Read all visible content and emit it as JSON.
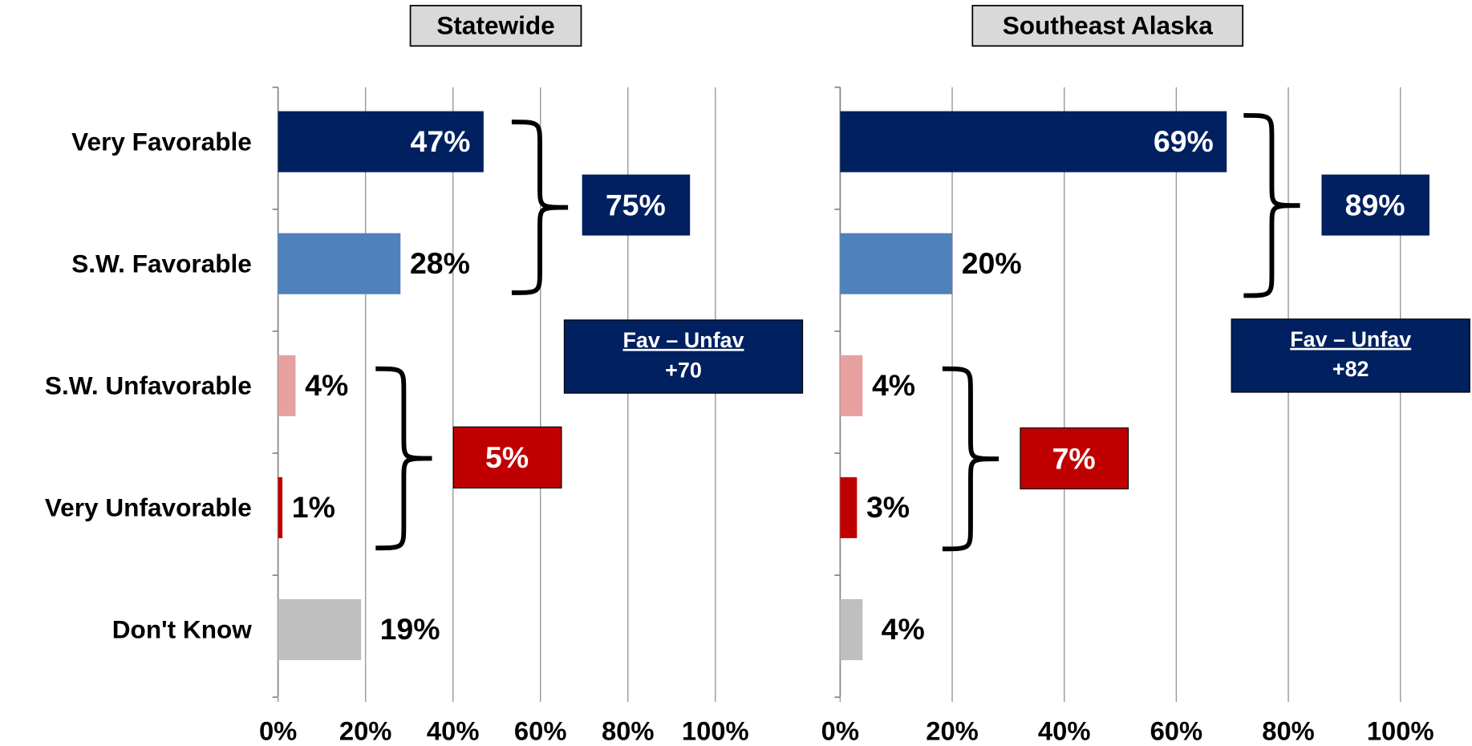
{
  "chart_data": [
    {
      "type": "bar",
      "orientation": "horizontal",
      "title": "Statewide",
      "categories": [
        "Very Favorable",
        "S.W. Favorable",
        "S.W. Unfavorable",
        "Very Unfavorable",
        "Don't Know"
      ],
      "values": [
        47,
        28,
        4,
        1,
        19
      ],
      "value_labels": [
        "47%",
        "28%",
        "4%",
        "1%",
        "19%"
      ],
      "colors": [
        "#002060",
        "#4f81bd",
        "#e6a0a0",
        "#c00000",
        "#bfbfbf"
      ],
      "xlim": [
        0,
        100
      ],
      "xticks": [
        {
          "value": 0,
          "label": "0%"
        },
        {
          "value": 20,
          "label": "20%"
        },
        {
          "value": 40,
          "label": "40%"
        },
        {
          "value": 60,
          "label": "60%"
        },
        {
          "value": 80,
          "label": "80%"
        },
        {
          "value": 100,
          "label": "100%"
        }
      ],
      "grid": true,
      "favorable_total": "75%",
      "unfavorable_total": "5%",
      "net_label": "Fav – Unfav",
      "net_value": "+70"
    },
    {
      "type": "bar",
      "orientation": "horizontal",
      "title": "Southeast Alaska",
      "values": [
        69,
        20,
        4,
        3,
        4
      ],
      "value_labels": [
        "69%",
        "20%",
        "4%",
        "3%",
        "4%"
      ],
      "colors": [
        "#002060",
        "#4f81bd",
        "#e6a0a0",
        "#c00000",
        "#bfbfbf"
      ],
      "xlim": [
        0,
        100
      ],
      "xticks": [
        {
          "value": 0,
          "label": "0%"
        },
        {
          "value": 20,
          "label": "20%"
        },
        {
          "value": 40,
          "label": "40%"
        },
        {
          "value": 60,
          "label": "60%"
        },
        {
          "value": 80,
          "label": "80%"
        },
        {
          "value": 100,
          "label": "100%"
        }
      ],
      "grid": true,
      "favorable_total": "89%",
      "unfavorable_total": "7%",
      "net_label": "Fav – Unfav",
      "net_value": "+82"
    }
  ]
}
